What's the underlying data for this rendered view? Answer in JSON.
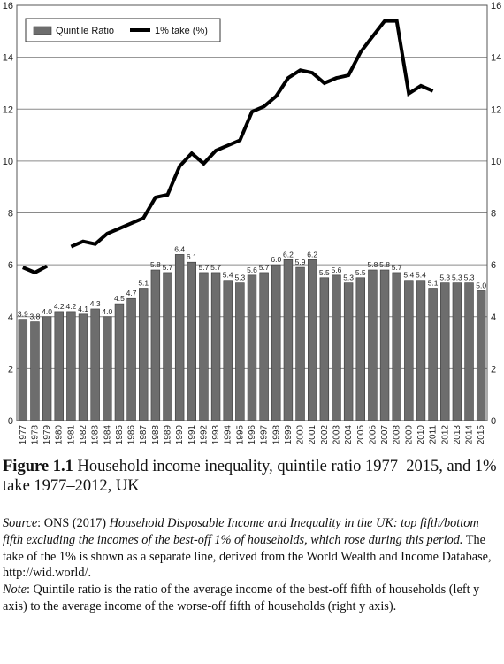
{
  "chart_data": {
    "type": "bar",
    "legend": [
      "Quintile Ratio",
      "1% take (%)"
    ],
    "legend_position": "top-left",
    "grid": true,
    "ylim_left": [
      0,
      16
    ],
    "ylim_right": [
      0,
      16
    ],
    "y_ticks": [
      "0",
      "2",
      "4",
      "6",
      "8",
      "10",
      "12",
      "14",
      "16"
    ],
    "categories": [
      "1977",
      "1978",
      "1979",
      "1980",
      "1981",
      "1982",
      "1983",
      "1984",
      "1985",
      "1986",
      "1987",
      "1988",
      "1989",
      "1990",
      "1991",
      "1992",
      "1993",
      "1994",
      "1995",
      "1996",
      "1997",
      "1998",
      "1999",
      "2000",
      "2001",
      "2002",
      "2003",
      "2004",
      "2005",
      "2006",
      "2007",
      "2008",
      "2009",
      "2010",
      "2011",
      "2012",
      "2013",
      "2014",
      "2015"
    ],
    "series": [
      {
        "name": "Quintile Ratio",
        "kind": "bar",
        "axis": "left",
        "color": "#6d6d6d",
        "values": [
          3.9,
          3.8,
          4.0,
          4.2,
          4.2,
          4.1,
          4.3,
          4.0,
          4.5,
          4.7,
          5.1,
          5.8,
          5.7,
          6.4,
          6.1,
          5.7,
          5.7,
          5.4,
          5.3,
          5.6,
          5.7,
          6.0,
          6.2,
          5.9,
          6.2,
          5.5,
          5.6,
          5.3,
          5.5,
          5.8,
          5.8,
          5.7,
          5.4,
          5.4,
          5.1,
          5.3,
          5.3,
          5.3,
          5.0
        ]
      },
      {
        "name": "1% take (%)",
        "kind": "line",
        "axis": "right",
        "color": "#000000",
        "values": [
          5.9,
          5.7,
          5.95,
          null,
          6.7,
          6.9,
          6.8,
          7.2,
          7.4,
          7.6,
          7.8,
          8.6,
          8.7,
          9.8,
          10.3,
          9.9,
          10.4,
          10.6,
          10.8,
          11.9,
          12.1,
          12.5,
          13.2,
          13.5,
          13.4,
          13.0,
          13.2,
          13.3,
          14.2,
          14.8,
          15.4,
          15.4,
          12.6,
          12.9,
          12.7,
          null,
          null,
          null,
          null
        ]
      }
    ]
  },
  "caption": {
    "label": "Figure 1.1",
    "text": "Household income inequality, quintile ratio 1977–2015, and 1% take 1977–2012, UK"
  },
  "source": {
    "label": "Source",
    "text_plain_1": ": ONS (2017) ",
    "italic_title": "Household Disposable Income and Inequality in the UK: top fifth/bottom fifth excluding the incomes of the best-off 1% of households, which rose during this period.",
    "text_plain_2": " The take of the 1% is shown as a separate line, derived from the World Wealth and Income Database, http://wid.world/."
  },
  "note": {
    "label": "Note",
    "text": ": Quintile ratio is the ratio of the average income of the best-off fifth of households (left y axis) to the average income of the worse-off fifth of households (right y axis)."
  }
}
